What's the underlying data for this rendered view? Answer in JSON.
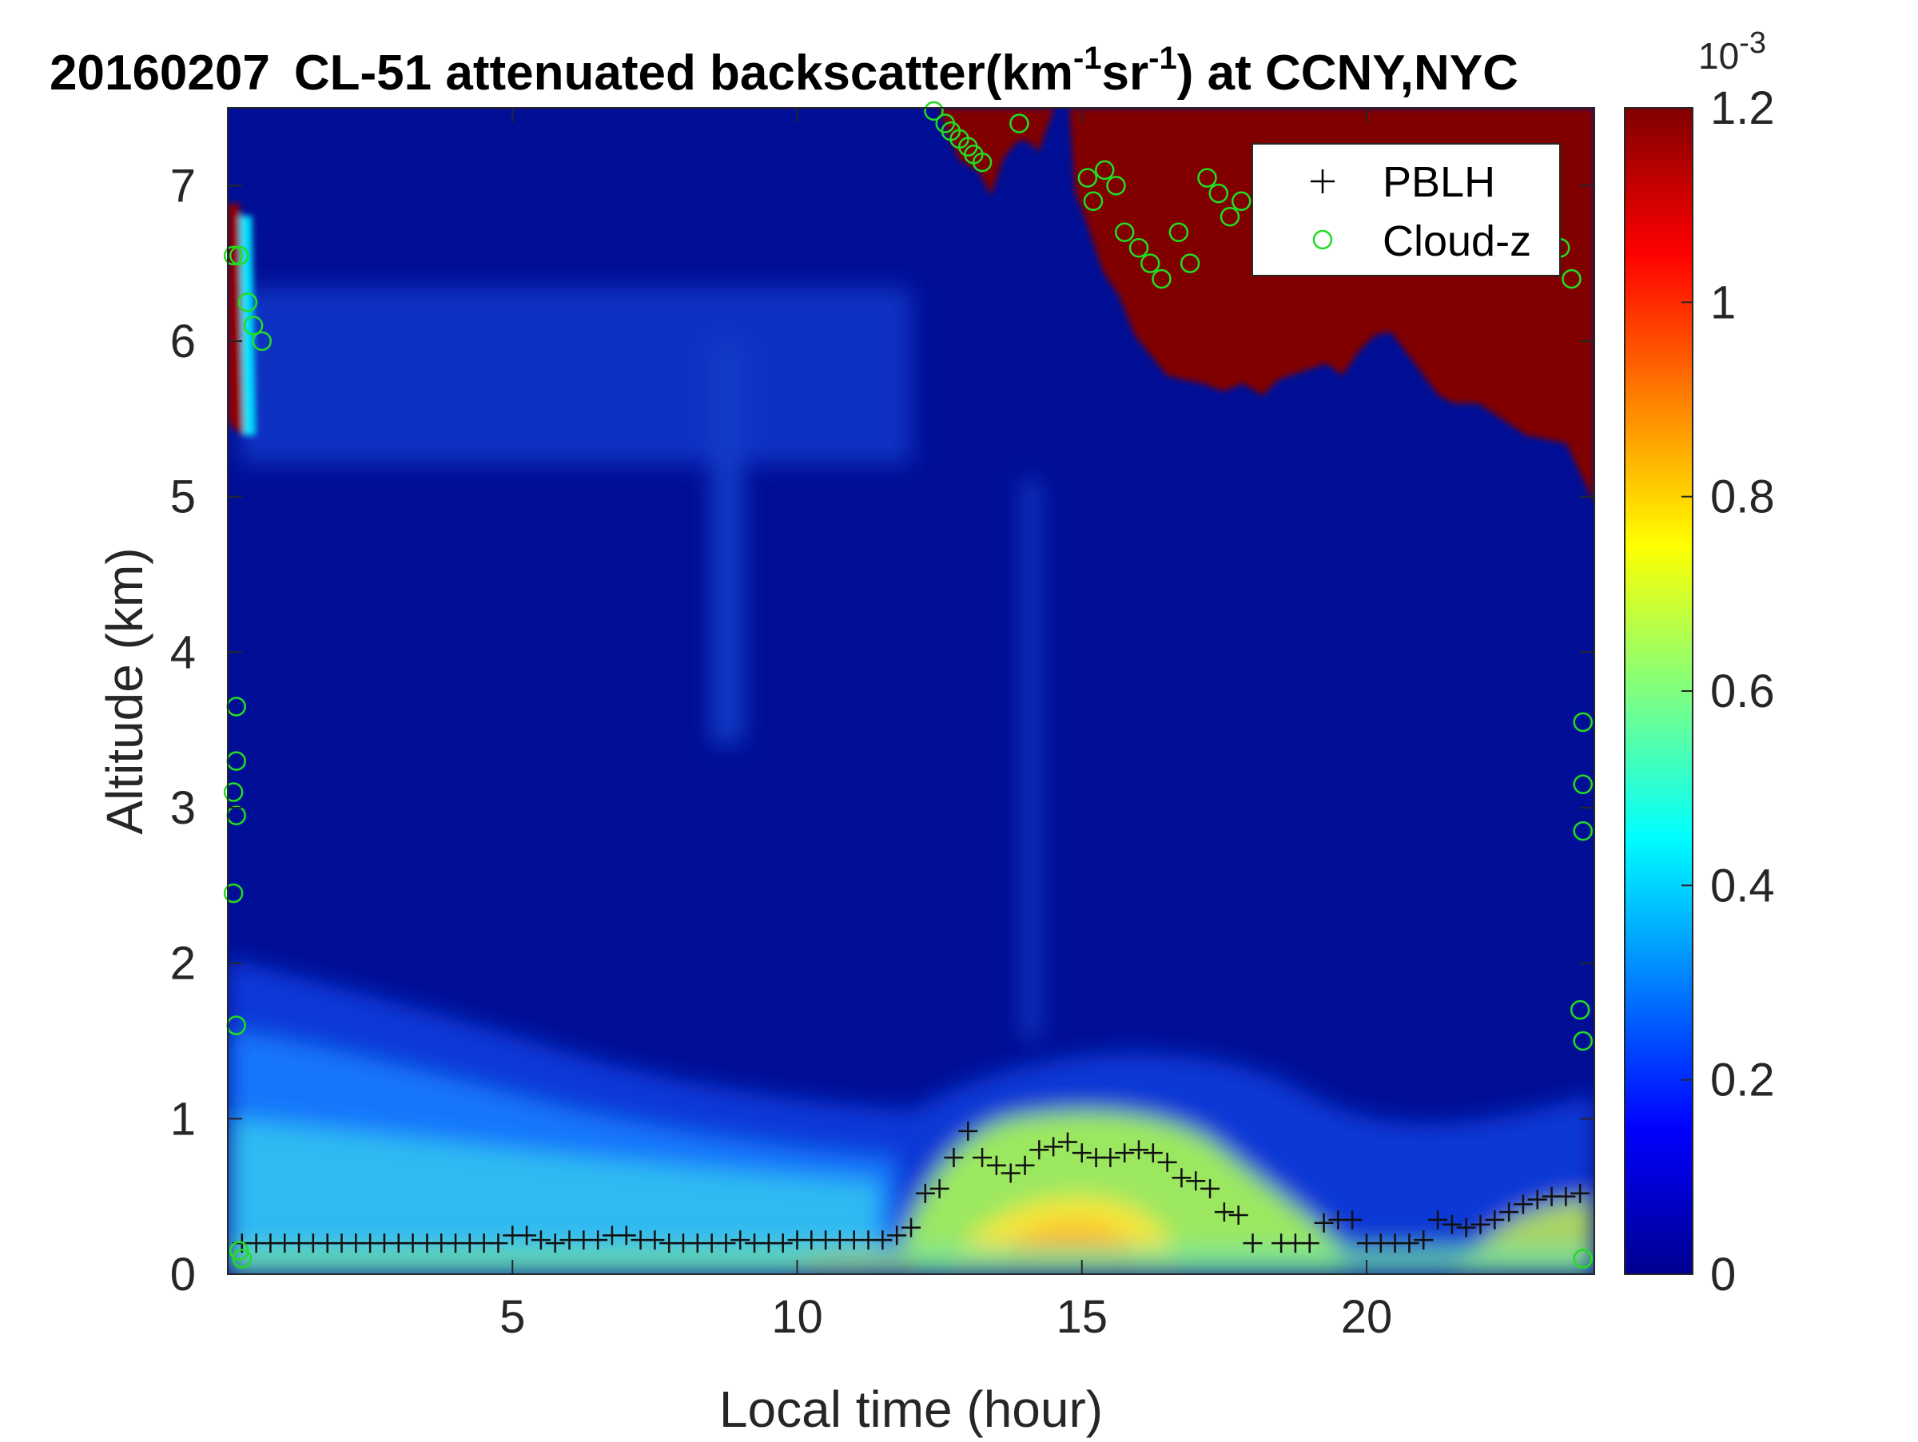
{
  "chart_data": {
    "type": "heatmap",
    "title": {
      "date": "20160207",
      "text_main": "CL-51 attenuated backscatter(km",
      "sup1": "-1",
      "text_mid": "sr",
      "sup2": "-1",
      "text_end": ") at CCNY,NYC"
    },
    "xlabel": "Local time (hour)",
    "ylabel": "Altitude (km)",
    "xlim": [
      0,
      24
    ],
    "ylim": [
      0,
      7.5
    ],
    "xticks": [
      5,
      10,
      15,
      20
    ],
    "yticks": [
      0,
      1,
      2,
      3,
      4,
      5,
      6,
      7
    ],
    "colorbar": {
      "colormap": "jet",
      "range": [
        0,
        0.0012
      ],
      "ticks": [
        0,
        0.2,
        0.4,
        0.6,
        0.8,
        1,
        1.2
      ],
      "exponent_label": "10",
      "exponent": "-3"
    },
    "legend": {
      "position": "top-right",
      "entries": [
        {
          "label": "PBLH",
          "marker": "plus",
          "color": "#000000"
        },
        {
          "label": "Cloud-z",
          "marker": "circle",
          "color": "#22dd22"
        }
      ]
    },
    "pblh_series": {
      "name": "PBLH",
      "x": [
        0.25,
        0.5,
        0.75,
        1,
        1.25,
        1.5,
        1.75,
        2,
        2.25,
        2.5,
        2.75,
        3,
        3.25,
        3.5,
        3.75,
        4,
        4.25,
        4.5,
        4.75,
        5,
        5.25,
        5.5,
        5.75,
        6,
        6.25,
        6.5,
        6.75,
        7,
        7.25,
        7.5,
        7.75,
        8,
        8.25,
        8.5,
        8.75,
        9,
        9.25,
        9.5,
        9.75,
        10,
        10.25,
        10.5,
        10.75,
        11,
        11.25,
        11.5,
        11.75,
        12,
        12.25,
        12.5,
        12.75,
        13,
        13.25,
        13.5,
        13.75,
        14,
        14.25,
        14.5,
        14.75,
        15,
        15.25,
        15.5,
        15.75,
        16,
        16.25,
        16.5,
        16.75,
        17,
        17.25,
        17.5,
        17.75,
        18,
        18.5,
        18.75,
        19,
        19.25,
        19.5,
        19.75,
        20,
        20.25,
        20.5,
        20.75,
        21,
        21.25,
        21.5,
        21.75,
        22,
        22.25,
        22.5,
        22.75,
        23,
        23.25,
        23.5,
        23.75
      ],
      "y": [
        0.2,
        0.2,
        0.2,
        0.2,
        0.2,
        0.2,
        0.2,
        0.2,
        0.2,
        0.2,
        0.2,
        0.2,
        0.2,
        0.2,
        0.2,
        0.2,
        0.2,
        0.2,
        0.2,
        0.25,
        0.25,
        0.22,
        0.2,
        0.22,
        0.22,
        0.22,
        0.25,
        0.25,
        0.22,
        0.22,
        0.2,
        0.2,
        0.2,
        0.2,
        0.2,
        0.22,
        0.2,
        0.2,
        0.2,
        0.22,
        0.22,
        0.22,
        0.22,
        0.22,
        0.22,
        0.22,
        0.25,
        0.3,
        0.52,
        0.55,
        0.75,
        0.92,
        0.75,
        0.7,
        0.65,
        0.7,
        0.8,
        0.82,
        0.85,
        0.78,
        0.75,
        0.75,
        0.78,
        0.8,
        0.78,
        0.72,
        0.62,
        0.6,
        0.55,
        0.4,
        0.38,
        0.2,
        0.2,
        0.2,
        0.2,
        0.33,
        0.35,
        0.35,
        0.2,
        0.2,
        0.2,
        0.2,
        0.22,
        0.35,
        0.32,
        0.3,
        0.32,
        0.35,
        0.4,
        0.45,
        0.48,
        0.5,
        0.5,
        0.52
      ]
    },
    "cloud_series": {
      "name": "Cloud-z",
      "x": [
        0.1,
        0.2,
        0.35,
        0.45,
        0.6,
        12.4,
        12.6,
        12.7,
        12.85,
        13,
        13.1,
        13.25,
        13.9,
        15.1,
        15.2,
        15.4,
        15.6,
        15.75,
        16,
        16.2,
        16.4,
        16.7,
        16.9,
        17.2,
        17.4,
        17.6,
        17.8,
        22.8,
        23,
        23.2,
        23.4,
        23.6,
        0.15,
        0.15,
        0.1,
        0.15,
        0.1,
        0.15,
        23.8,
        23.8,
        23.8,
        0.2,
        0.25,
        23.75,
        23.8,
        23.8
      ],
      "y": [
        6.55,
        6.55,
        6.25,
        6.1,
        6.0,
        7.48,
        7.4,
        7.35,
        7.3,
        7.25,
        7.2,
        7.15,
        7.4,
        7.05,
        6.9,
        7.1,
        7.0,
        6.7,
        6.6,
        6.5,
        6.4,
        6.7,
        6.5,
        7.05,
        6.95,
        6.8,
        6.9,
        6.7,
        6.6,
        6.55,
        6.6,
        6.4,
        3.65,
        3.3,
        3.1,
        2.95,
        2.45,
        1.6,
        3.55,
        3.15,
        2.85,
        0.15,
        0.1,
        1.7,
        1.5,
        0.1
      ]
    }
  }
}
